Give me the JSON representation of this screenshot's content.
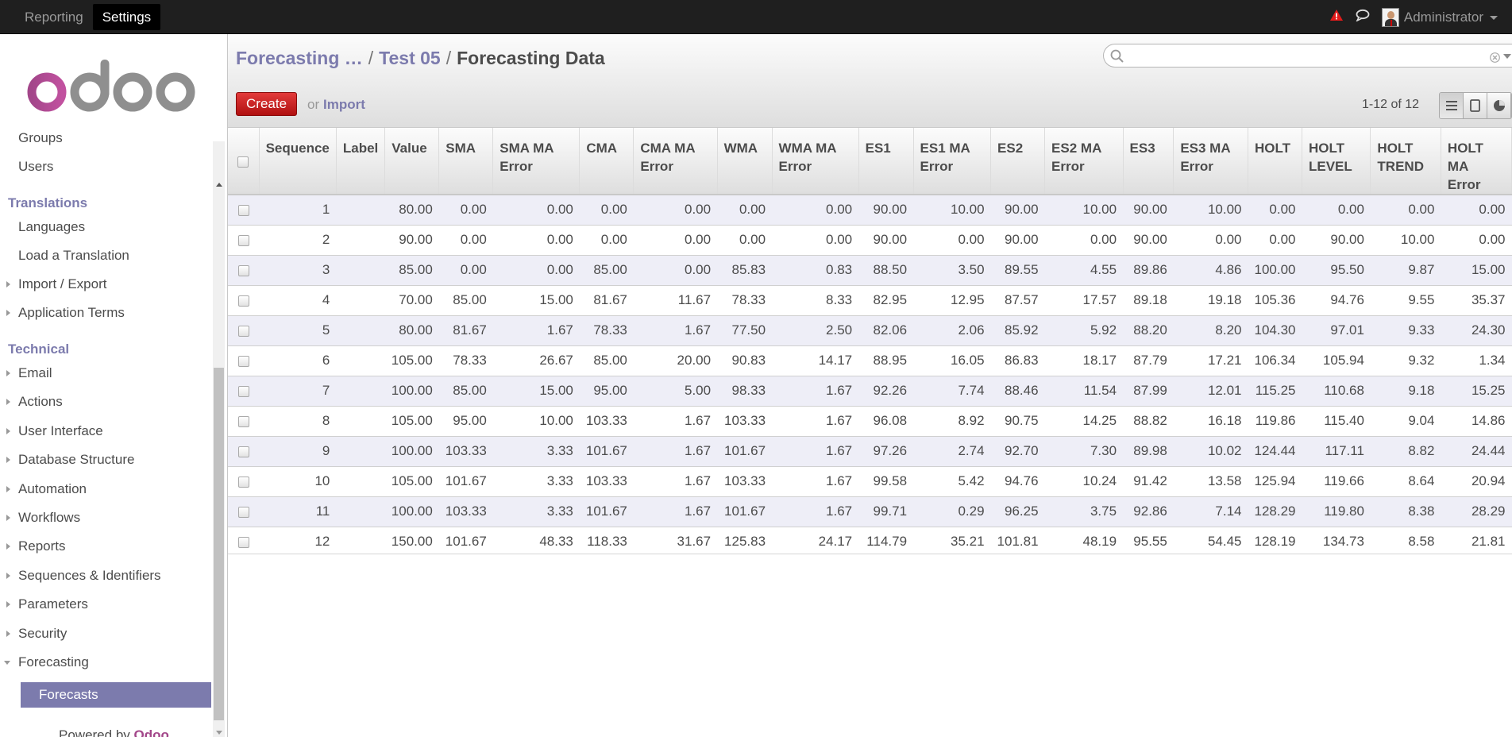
{
  "topbar": {
    "menus": [
      "Reporting",
      "Settings"
    ],
    "active_menu": "Settings",
    "user": "Administrator"
  },
  "sidebar": {
    "items": [
      {
        "type": "item",
        "label": "Groups"
      },
      {
        "type": "item",
        "label": "Users"
      },
      {
        "type": "section",
        "label": "Translations"
      },
      {
        "type": "item",
        "label": "Languages"
      },
      {
        "type": "item",
        "label": "Load a Translation"
      },
      {
        "type": "expand",
        "label": "Import / Export"
      },
      {
        "type": "expand",
        "label": "Application Terms"
      },
      {
        "type": "section",
        "label": "Technical"
      },
      {
        "type": "expand",
        "label": "Email"
      },
      {
        "type": "expand",
        "label": "Actions"
      },
      {
        "type": "expand",
        "label": "User Interface"
      },
      {
        "type": "expand",
        "label": "Database Structure"
      },
      {
        "type": "expand",
        "label": "Automation"
      },
      {
        "type": "expand",
        "label": "Workflows"
      },
      {
        "type": "expand",
        "label": "Reports"
      },
      {
        "type": "expand",
        "label": "Sequences & Identifiers"
      },
      {
        "type": "expand",
        "label": "Parameters"
      },
      {
        "type": "expand",
        "label": "Security"
      },
      {
        "type": "open",
        "label": "Forecasting"
      },
      {
        "type": "active",
        "label": "Forecasts"
      }
    ],
    "powered_prefix": "Powered by ",
    "powered_brand": "Odoo"
  },
  "breadcrumbs": {
    "first": "Forecasting …",
    "second": "Test 05",
    "current": "Forecasting Data",
    "separator": "/"
  },
  "search": {
    "placeholder": ""
  },
  "actions": {
    "create_label": "Create",
    "or_label": "or",
    "import_label": "Import"
  },
  "pager": {
    "text": "1-12 of 12"
  },
  "colors": {
    "accent": "#7c7bad",
    "create": "#c91c1c",
    "topbar": "#1f1f1f",
    "odd_row": "#eeeef7"
  },
  "table": {
    "columns": [
      "Sequence",
      "Label",
      "Value",
      "SMA",
      "SMA MA Error",
      "CMA",
      "CMA MA Error",
      "WMA",
      "WMA MA Error",
      "ES1",
      "ES1 MA Error",
      "ES2",
      "ES2 MA Error",
      "ES3",
      "ES3 MA Error",
      "HOLT",
      "HOLT LEVEL",
      "HOLT TREND",
      "HOLT MA Error"
    ],
    "rows": [
      [
        "1",
        "",
        "80.00",
        "0.00",
        "0.00",
        "0.00",
        "0.00",
        "0.00",
        "0.00",
        "90.00",
        "10.00",
        "90.00",
        "10.00",
        "90.00",
        "10.00",
        "0.00",
        "0.00",
        "0.00",
        "0.00"
      ],
      [
        "2",
        "",
        "90.00",
        "0.00",
        "0.00",
        "0.00",
        "0.00",
        "0.00",
        "0.00",
        "90.00",
        "0.00",
        "90.00",
        "0.00",
        "90.00",
        "0.00",
        "0.00",
        "90.00",
        "10.00",
        "0.00"
      ],
      [
        "3",
        "",
        "85.00",
        "0.00",
        "0.00",
        "85.00",
        "0.00",
        "85.83",
        "0.83",
        "88.50",
        "3.50",
        "89.55",
        "4.55",
        "89.86",
        "4.86",
        "100.00",
        "95.50",
        "9.87",
        "15.00"
      ],
      [
        "4",
        "",
        "70.00",
        "85.00",
        "15.00",
        "81.67",
        "11.67",
        "78.33",
        "8.33",
        "82.95",
        "12.95",
        "87.57",
        "17.57",
        "89.18",
        "19.18",
        "105.36",
        "94.76",
        "9.55",
        "35.37"
      ],
      [
        "5",
        "",
        "80.00",
        "81.67",
        "1.67",
        "78.33",
        "1.67",
        "77.50",
        "2.50",
        "82.06",
        "2.06",
        "85.92",
        "5.92",
        "88.20",
        "8.20",
        "104.30",
        "97.01",
        "9.33",
        "24.30"
      ],
      [
        "6",
        "",
        "105.00",
        "78.33",
        "26.67",
        "85.00",
        "20.00",
        "90.83",
        "14.17",
        "88.95",
        "16.05",
        "86.83",
        "18.17",
        "87.79",
        "17.21",
        "106.34",
        "105.94",
        "9.32",
        "1.34"
      ],
      [
        "7",
        "",
        "100.00",
        "85.00",
        "15.00",
        "95.00",
        "5.00",
        "98.33",
        "1.67",
        "92.26",
        "7.74",
        "88.46",
        "11.54",
        "87.99",
        "12.01",
        "115.25",
        "110.68",
        "9.18",
        "15.25"
      ],
      [
        "8",
        "",
        "105.00",
        "95.00",
        "10.00",
        "103.33",
        "1.67",
        "103.33",
        "1.67",
        "96.08",
        "8.92",
        "90.75",
        "14.25",
        "88.82",
        "16.18",
        "119.86",
        "115.40",
        "9.04",
        "14.86"
      ],
      [
        "9",
        "",
        "100.00",
        "103.33",
        "3.33",
        "101.67",
        "1.67",
        "101.67",
        "1.67",
        "97.26",
        "2.74",
        "92.70",
        "7.30",
        "89.98",
        "10.02",
        "124.44",
        "117.11",
        "8.82",
        "24.44"
      ],
      [
        "10",
        "",
        "105.00",
        "101.67",
        "3.33",
        "103.33",
        "1.67",
        "103.33",
        "1.67",
        "99.58",
        "5.42",
        "94.76",
        "10.24",
        "91.42",
        "13.58",
        "125.94",
        "119.66",
        "8.64",
        "20.94"
      ],
      [
        "11",
        "",
        "100.00",
        "103.33",
        "3.33",
        "101.67",
        "1.67",
        "101.67",
        "1.67",
        "99.71",
        "0.29",
        "96.25",
        "3.75",
        "92.86",
        "7.14",
        "128.29",
        "119.80",
        "8.38",
        "28.29"
      ],
      [
        "12",
        "",
        "150.00",
        "101.67",
        "48.33",
        "118.33",
        "31.67",
        "125.83",
        "24.17",
        "114.79",
        "35.21",
        "101.81",
        "48.19",
        "95.55",
        "54.45",
        "128.19",
        "134.73",
        "8.58",
        "21.81"
      ]
    ]
  }
}
